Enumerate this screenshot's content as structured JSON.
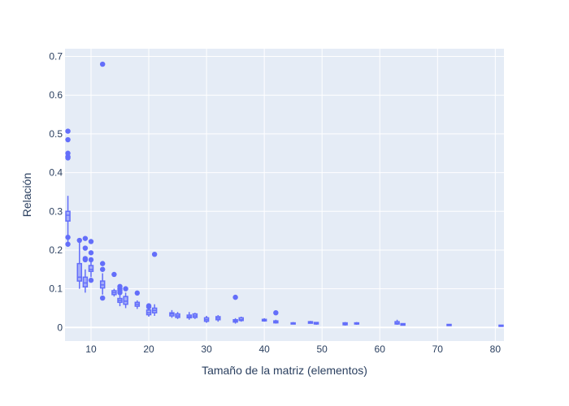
{
  "chart_data": {
    "type": "box",
    "xlabel": "Tamaño de la matriz (elementos)",
    "ylabel": "Relación",
    "xlim": [
      5.5,
      81.5
    ],
    "ylim": [
      -0.035,
      0.72
    ],
    "x_ticks": [
      10,
      20,
      30,
      40,
      50,
      60,
      70,
      80
    ],
    "x_tick_labels": [
      "10",
      "20",
      "30",
      "40",
      "50",
      "60",
      "70",
      "80"
    ],
    "y_ticks": [
      0,
      0.1,
      0.2,
      0.3,
      0.4,
      0.5,
      0.6,
      0.7
    ],
    "y_tick_labels": [
      "0",
      "0.1",
      "0.2",
      "0.3",
      "0.4",
      "0.5",
      "0.6",
      "0.7"
    ],
    "grid": true,
    "colors": {
      "plot_bg": "#e5ecf6",
      "grid": "#ffffff",
      "series": "#636efa",
      "text": "#2a3f5f"
    },
    "boxes": [
      {
        "x": 6,
        "min": 0.22,
        "q1": 0.275,
        "median": 0.29,
        "q3": 0.3,
        "max": 0.34,
        "outliers": [
          0.215,
          0.233,
          0.438,
          0.441,
          0.45,
          0.485,
          0.507
        ]
      },
      {
        "x": 8,
        "min": 0.1,
        "q1": 0.12,
        "median": 0.13,
        "q3": 0.165,
        "max": 0.22,
        "outliers": [
          0.225
        ]
      },
      {
        "x": 9,
        "min": 0.09,
        "q1": 0.105,
        "median": 0.115,
        "q3": 0.13,
        "max": 0.15,
        "outliers": [
          0.175,
          0.178,
          0.205,
          0.23
        ]
      },
      {
        "x": 10,
        "min": 0.13,
        "q1": 0.145,
        "median": 0.15,
        "q3": 0.16,
        "max": 0.17,
        "outliers": [
          0.122,
          0.175,
          0.193,
          0.222
        ]
      },
      {
        "x": 12,
        "min": 0.085,
        "q1": 0.102,
        "median": 0.11,
        "q3": 0.12,
        "max": 0.14,
        "outliers": [
          0.076,
          0.15,
          0.165,
          0.68
        ]
      },
      {
        "x": 14,
        "min": 0.08,
        "q1": 0.085,
        "median": 0.09,
        "q3": 0.095,
        "max": 0.1,
        "outliers": [
          0.137
        ]
      },
      {
        "x": 15,
        "min": 0.055,
        "q1": 0.065,
        "median": 0.07,
        "q3": 0.075,
        "max": 0.085,
        "outliers": [
          0.09,
          0.095,
          0.1,
          0.106
        ]
      },
      {
        "x": 16,
        "min": 0.05,
        "q1": 0.06,
        "median": 0.068,
        "q3": 0.08,
        "max": 0.09,
        "outliers": [
          0.1
        ]
      },
      {
        "x": 18,
        "min": 0.048,
        "q1": 0.055,
        "median": 0.06,
        "q3": 0.065,
        "max": 0.07,
        "outliers": [
          0.089
        ]
      },
      {
        "x": 20,
        "min": 0.028,
        "q1": 0.033,
        "median": 0.038,
        "q3": 0.045,
        "max": 0.05,
        "outliers": [
          0.053,
          0.056
        ]
      },
      {
        "x": 21,
        "min": 0.03,
        "q1": 0.038,
        "median": 0.044,
        "q3": 0.05,
        "max": 0.06,
        "outliers": [
          0.189
        ]
      },
      {
        "x": 24,
        "min": 0.025,
        "q1": 0.03,
        "median": 0.035,
        "q3": 0.038,
        "max": 0.045,
        "outliers": []
      },
      {
        "x": 25,
        "min": 0.022,
        "q1": 0.026,
        "median": 0.03,
        "q3": 0.035,
        "max": 0.04,
        "outliers": []
      },
      {
        "x": 27,
        "min": 0.02,
        "q1": 0.025,
        "median": 0.028,
        "q3": 0.032,
        "max": 0.04,
        "outliers": []
      },
      {
        "x": 28,
        "min": 0.022,
        "q1": 0.026,
        "median": 0.03,
        "q3": 0.035,
        "max": 0.038,
        "outliers": []
      },
      {
        "x": 30,
        "min": 0.012,
        "q1": 0.016,
        "median": 0.02,
        "q3": 0.025,
        "max": 0.03,
        "outliers": []
      },
      {
        "x": 32,
        "min": 0.015,
        "q1": 0.02,
        "median": 0.024,
        "q3": 0.028,
        "max": 0.032,
        "outliers": []
      },
      {
        "x": 35,
        "min": 0.01,
        "q1": 0.014,
        "median": 0.017,
        "q3": 0.02,
        "max": 0.024,
        "outliers": [
          0.078
        ]
      },
      {
        "x": 36,
        "min": 0.015,
        "q1": 0.018,
        "median": 0.02,
        "q3": 0.025,
        "max": 0.028,
        "outliers": []
      },
      {
        "x": 40,
        "min": 0.015,
        "q1": 0.017,
        "median": 0.019,
        "q3": 0.021,
        "max": 0.024,
        "outliers": []
      },
      {
        "x": 42,
        "min": 0.01,
        "q1": 0.012,
        "median": 0.014,
        "q3": 0.017,
        "max": 0.02,
        "outliers": [
          0.038
        ]
      },
      {
        "x": 45,
        "min": 0.008,
        "q1": 0.01,
        "median": 0.011,
        "q3": 0.012,
        "max": 0.014,
        "outliers": []
      },
      {
        "x": 48,
        "min": 0.01,
        "q1": 0.011,
        "median": 0.013,
        "q3": 0.015,
        "max": 0.017,
        "outliers": []
      },
      {
        "x": 49,
        "min": 0.007,
        "q1": 0.009,
        "median": 0.011,
        "q3": 0.013,
        "max": 0.014,
        "outliers": []
      },
      {
        "x": 54,
        "min": 0.005,
        "q1": 0.007,
        "median": 0.009,
        "q3": 0.012,
        "max": 0.014,
        "outliers": []
      },
      {
        "x": 56,
        "min": 0.007,
        "q1": 0.009,
        "median": 0.01,
        "q3": 0.012,
        "max": 0.014,
        "outliers": []
      },
      {
        "x": 63,
        "min": 0.007,
        "q1": 0.009,
        "median": 0.011,
        "q3": 0.015,
        "max": 0.02,
        "outliers": []
      },
      {
        "x": 64,
        "min": 0.005,
        "q1": 0.006,
        "median": 0.008,
        "q3": 0.01,
        "max": 0.011,
        "outliers": []
      },
      {
        "x": 72,
        "min": 0.004,
        "q1": 0.005,
        "median": 0.006,
        "q3": 0.008,
        "max": 0.009,
        "outliers": []
      },
      {
        "x": 81,
        "min": 0.003,
        "q1": 0.004,
        "median": 0.005,
        "q3": 0.006,
        "max": 0.007,
        "outliers": []
      }
    ]
  }
}
